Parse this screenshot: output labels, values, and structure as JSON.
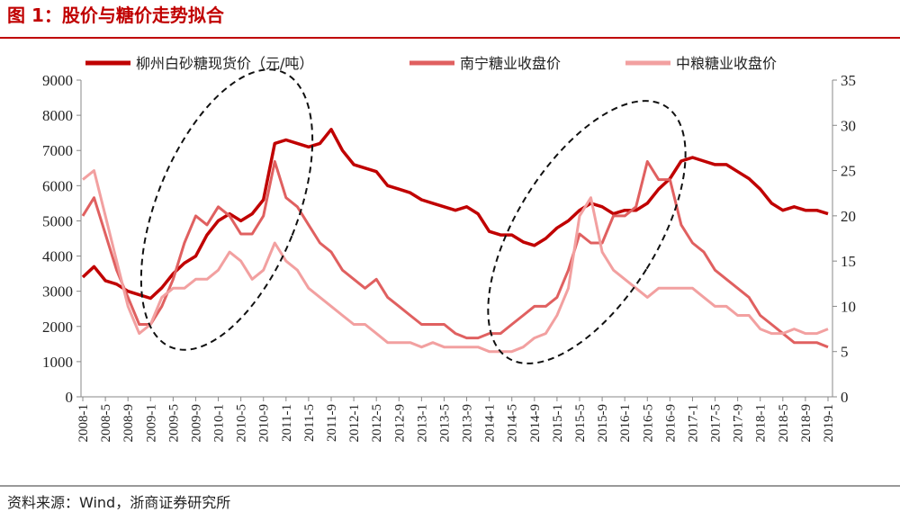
{
  "chart_data": {
    "type": "line",
    "title": "图 1：股价与糖价走势拟合",
    "source": "资料来源：Wind，浙商证券研究所",
    "categories": [
      "2008-1",
      null,
      "2008-5",
      null,
      "2008-9",
      null,
      "2009-1",
      null,
      "2009-5",
      null,
      "2009-9",
      null,
      "2010-1",
      null,
      "2010-5",
      null,
      "2010-9",
      null,
      "2011-1",
      null,
      "2011-5",
      null,
      "2011-9",
      null,
      "2012-1",
      null,
      "2012-5",
      null,
      "2012-9",
      null,
      "2013-1",
      null,
      "2013-5",
      null,
      "2013-9",
      null,
      "2014-1",
      null,
      "2014-5",
      null,
      "2014-9",
      null,
      "2015-1",
      null,
      "2015-5",
      null,
      "2015-9",
      null,
      "2016-1",
      null,
      "2016-5",
      null,
      "2016-9",
      null,
      "2017-1",
      null,
      "2017-5",
      null,
      "2017-9",
      null,
      "2018-1",
      null,
      "2018-5",
      null,
      "2018-9",
      null,
      "2019-1"
    ],
    "series": [
      {
        "name": "柳州白砂糖现货价（元/吨）",
        "color": "#c00000",
        "axis": "y",
        "values": [
          3400,
          3700,
          3300,
          3200,
          3000,
          2900,
          2800,
          3100,
          3500,
          3800,
          4000,
          4600,
          5000,
          5200,
          5000,
          5200,
          5600,
          7200,
          7300,
          7200,
          7100,
          7200,
          7600,
          7000,
          6600,
          6500,
          6400,
          6000,
          5900,
          5800,
          5600,
          5500,
          5400,
          5300,
          5400,
          5200,
          4700,
          4600,
          4600,
          4400,
          4300,
          4500,
          4800,
          5000,
          5300,
          5500,
          5400,
          5200,
          5300,
          5300,
          5500,
          5900,
          6200,
          6700,
          6800,
          6700,
          6600,
          6600,
          6400,
          6200,
          5900,
          5500,
          5300,
          5400,
          5300,
          5300,
          5200
        ]
      },
      {
        "name": "南宁糖业收盘价",
        "color": "#e06060",
        "axis": "y2",
        "values": [
          20,
          22,
          18,
          14,
          11,
          8,
          8,
          10,
          13,
          17,
          20,
          19,
          21,
          20,
          18,
          18,
          20,
          26,
          22,
          21,
          19,
          17,
          16,
          14,
          13,
          12,
          13,
          11,
          10,
          9,
          8,
          8,
          8,
          7,
          6.5,
          6.5,
          7,
          7,
          8,
          9,
          10,
          10,
          11,
          14,
          18,
          17,
          17,
          20,
          20,
          21,
          26,
          24,
          24,
          19,
          17,
          16,
          14,
          13,
          12,
          11,
          9,
          8,
          7,
          6,
          6,
          6,
          5.5
        ]
      },
      {
        "name": "中粮糖业收盘价",
        "color": "#f2a0a0",
        "axis": "y2",
        "values": [
          24,
          25,
          20,
          15,
          10,
          7,
          8,
          11,
          12,
          12,
          13,
          13,
          14,
          16,
          15,
          13,
          14,
          17,
          15,
          14,
          12,
          11,
          10,
          9,
          8,
          8,
          7,
          6,
          6,
          6,
          5.5,
          6,
          5.5,
          5.5,
          5.5,
          5.5,
          5,
          5,
          5,
          5.5,
          6.5,
          7,
          9,
          12,
          20,
          22,
          16,
          14,
          13,
          12,
          11,
          12,
          12,
          12,
          12,
          11,
          10,
          10,
          9,
          9,
          7.5,
          7,
          7,
          7.5,
          7,
          7,
          7.5
        ]
      }
    ],
    "ylim": [
      0,
      9000
    ],
    "yticks": [
      0,
      1000,
      2000,
      3000,
      4000,
      5000,
      6000,
      7000,
      8000,
      9000
    ],
    "y2lim": [
      0,
      35
    ],
    "y2ticks": [
      0,
      5,
      10,
      15,
      20,
      25,
      30,
      35
    ],
    "legend": "top"
  }
}
